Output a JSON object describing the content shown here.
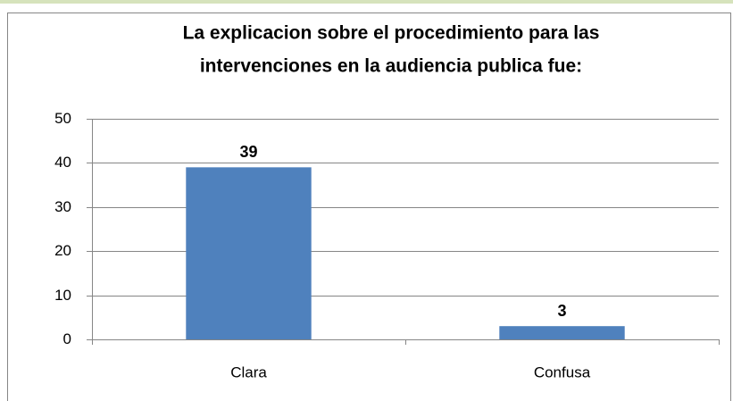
{
  "chart_data": {
    "type": "bar",
    "title": [
      "La explicacion sobre el procedimiento para las",
      "intervenciones en la audiencia publica fue:"
    ],
    "categories": [
      "Clara",
      "Confusa"
    ],
    "values": [
      39,
      3
    ],
    "color": "#4f81bd",
    "ylim": [
      0,
      50
    ],
    "yticks": [
      0,
      10,
      20,
      30,
      40,
      50
    ],
    "grid": true
  }
}
